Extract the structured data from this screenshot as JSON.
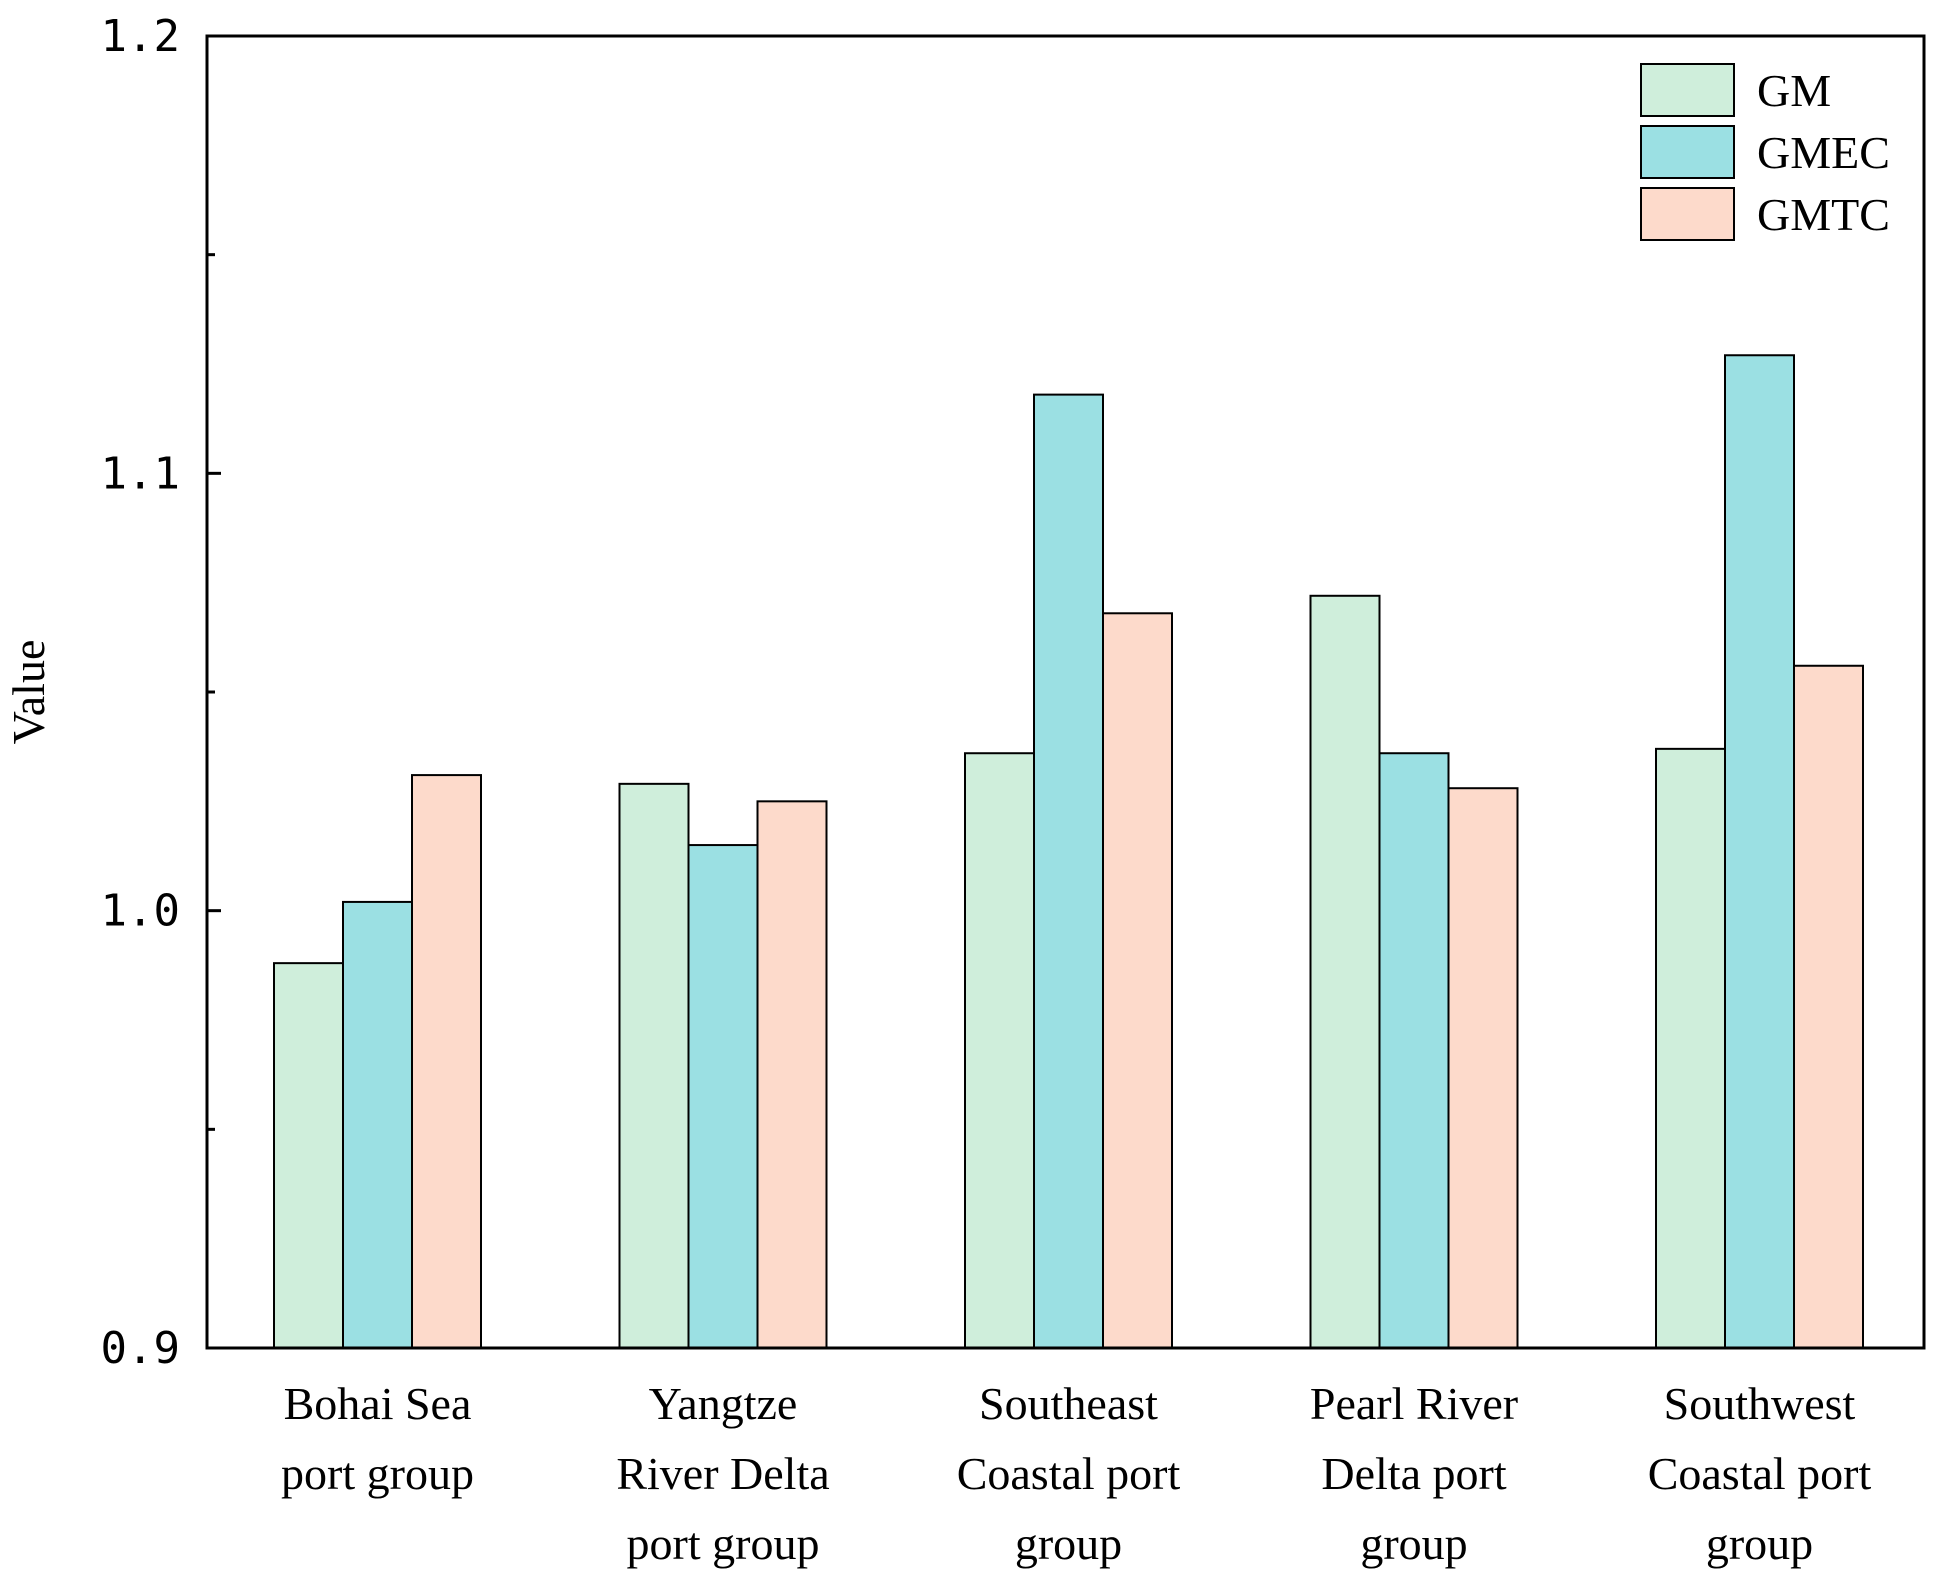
{
  "chart_data": {
    "type": "bar",
    "ylabel": "Value",
    "xlabel": "",
    "ylim": [
      0.9,
      1.2
    ],
    "y_ticks": [
      "0.9",
      "1.0",
      "1.1",
      "1.2"
    ],
    "y_minor_ticks": [
      0.95,
      1.05,
      1.15
    ],
    "categories": [
      [
        "Bohai Sea",
        "port group"
      ],
      [
        "Yangtze",
        "River Delta",
        "port group"
      ],
      [
        "Southeast",
        "Coastal port",
        "group"
      ],
      [
        "Pearl River",
        "Delta port",
        "group"
      ],
      [
        "Southwest",
        "Coastal port",
        "group"
      ]
    ],
    "series": [
      {
        "name": "GM",
        "color": "#cfeedb",
        "values": [
          0.988,
          1.029,
          1.036,
          1.072,
          1.037
        ]
      },
      {
        "name": "GMEC",
        "color": "#9be0e3",
        "values": [
          1.002,
          1.015,
          1.118,
          1.036,
          1.127
        ]
      },
      {
        "name": "GMTC",
        "color": "#fddacb",
        "values": [
          1.031,
          1.025,
          1.068,
          1.028,
          1.056
        ]
      }
    ],
    "legend": {
      "position": "top-right"
    },
    "grid": false
  }
}
